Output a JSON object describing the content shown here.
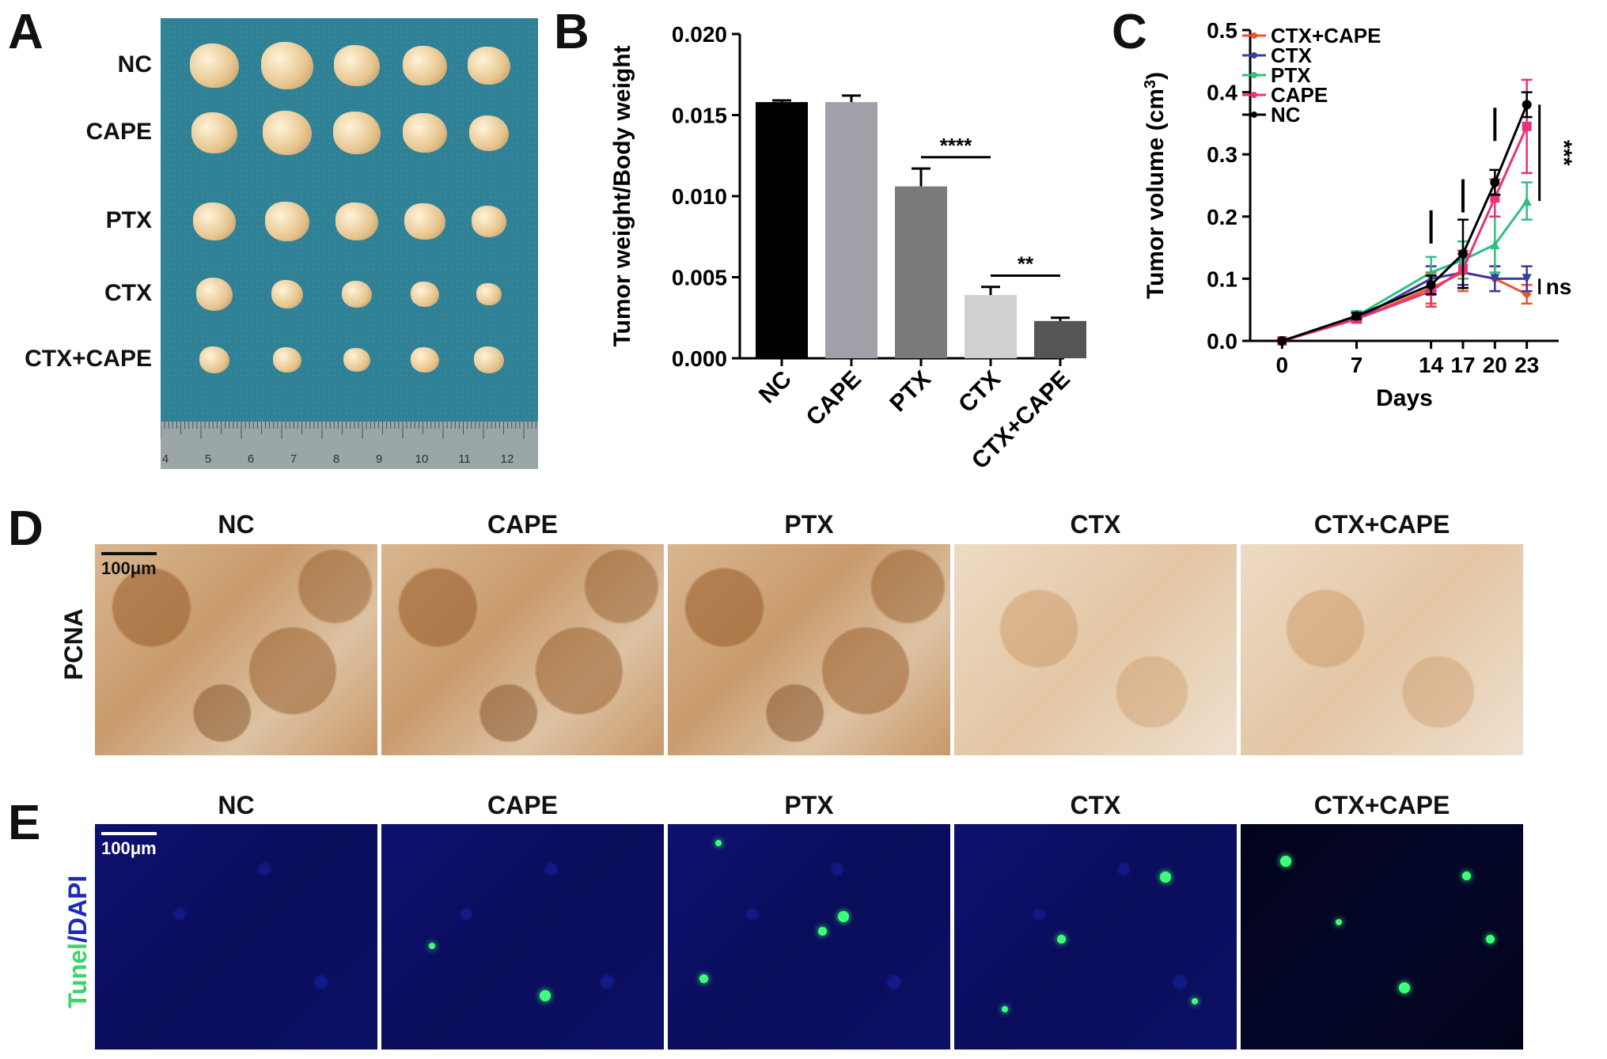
{
  "panels": {
    "A": {
      "letter": "A",
      "rows": [
        "NC",
        "CAPE",
        "PTX",
        "CTX",
        "CTX+CAPE"
      ],
      "ruler_ticks": [
        "4",
        "5",
        "6",
        "7",
        "8",
        "9",
        "10",
        "11",
        "12"
      ]
    },
    "B": {
      "letter": "B"
    },
    "C": {
      "letter": "C"
    },
    "D": {
      "letter": "D",
      "row_label": "PCNA",
      "columns": [
        "NC",
        "CAPE",
        "PTX",
        "CTX",
        "CTX+CAPE"
      ],
      "scale": "100μm"
    },
    "E": {
      "letter": "E",
      "row_label_a": "Tunel",
      "row_label_sep": "/",
      "row_label_b": "DAPI",
      "columns": [
        "NC",
        "CAPE",
        "PTX",
        "CTX",
        "CTX+CAPE"
      ],
      "scale": "100μm"
    }
  },
  "chart_data": [
    {
      "panel": "B",
      "type": "bar",
      "categories": [
        "NC",
        "CAPE",
        "PTX",
        "CTX",
        "CTX+CAPE"
      ],
      "values": [
        0.0158,
        0.0158,
        0.0106,
        0.0039,
        0.0023
      ],
      "errors": [
        0.0001,
        0.0004,
        0.0011,
        0.0005,
        0.0002
      ],
      "colors": [
        "#000000",
        "#a0a0a8",
        "#7a7a7a",
        "#d0d0d0",
        "#555555"
      ],
      "ylabel": "Tumor weight/Body weight",
      "ylim": [
        0,
        0.02
      ],
      "yticks": [
        "0.000",
        "0.005",
        "0.010",
        "0.015",
        "0.020"
      ],
      "ytick_values": [
        0,
        0.005,
        0.01,
        0.015,
        0.02
      ],
      "annotations": [
        {
          "text": "****",
          "from": "PTX",
          "to": "CTX",
          "y": 0.0124
        },
        {
          "text": "**",
          "from": "CTX",
          "to": "CTX+CAPE",
          "y": 0.0051
        }
      ]
    },
    {
      "panel": "C",
      "type": "line",
      "x": [
        0,
        7,
        14,
        17,
        20,
        23
      ],
      "xticks": [
        "0",
        "7",
        "14",
        "17",
        "20",
        "23"
      ],
      "xlabel": "Days",
      "ylabel": "Tumor volume (cm",
      "ylabel_sup": "3",
      "ylabel_close": ")",
      "ylim": [
        0,
        0.5
      ],
      "yticks": [
        "0.0",
        "0.1",
        "0.2",
        "0.3",
        "0.4",
        "0.5"
      ],
      "ytick_values": [
        0,
        0.1,
        0.2,
        0.3,
        0.4,
        0.5
      ],
      "treatment_days": [
        14,
        17,
        20
      ],
      "series": [
        {
          "name": "CTX+CAPE",
          "color": "#e8572a",
          "marker": "diamond",
          "values": [
            0,
            0.035,
            0.085,
            0.11,
            0.1,
            0.075
          ],
          "errors": [
            0,
            0.005,
            0.025,
            0.03,
            0.02,
            0.015
          ]
        },
        {
          "name": "CTX",
          "color": "#3b3ba0",
          "marker": "tri-down",
          "values": [
            0,
            0.035,
            0.1,
            0.11,
            0.1,
            0.1
          ],
          "errors": [
            0,
            0.005,
            0.02,
            0.02,
            0.02,
            0.02
          ]
        },
        {
          "name": "PTX",
          "color": "#2fbf7f",
          "marker": "tri-up",
          "values": [
            0,
            0.04,
            0.11,
            0.13,
            0.155,
            0.225
          ],
          "errors": [
            0,
            0.008,
            0.025,
            0.03,
            0.045,
            0.03
          ]
        },
        {
          "name": "CAPE",
          "color": "#e8327a",
          "marker": "square",
          "values": [
            0,
            0.035,
            0.08,
            0.115,
            0.23,
            0.345
          ],
          "errors": [
            0,
            0.005,
            0.025,
            0.03,
            0.03,
            0.075
          ]
        },
        {
          "name": "NC",
          "color": "#000000",
          "marker": "circle",
          "values": [
            0,
            0.04,
            0.09,
            0.14,
            0.255,
            0.38
          ],
          "errors": [
            0,
            0.005,
            0.015,
            0.055,
            0.02,
            0.02
          ]
        }
      ],
      "annotations": [
        {
          "text": "***",
          "from": 0.225,
          "to": 0.38,
          "at_x": 23
        },
        {
          "text": "ns",
          "from": 0.075,
          "to": 0.1,
          "at_x": 23
        }
      ]
    }
  ]
}
